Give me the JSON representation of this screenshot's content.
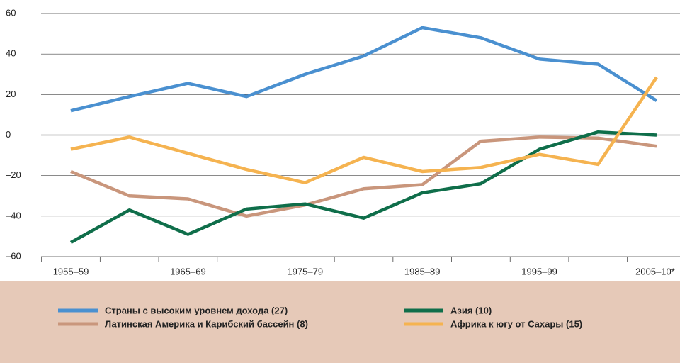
{
  "chart_data": {
    "type": "line",
    "categories": [
      "1955–59",
      null,
      "1965–69",
      null,
      "1975–79",
      null,
      "1985–89",
      null,
      "1995–99",
      null,
      "2005–10*"
    ],
    "series": [
      {
        "name": "Страны с высоким уровнем дохода (27)",
        "color": "#4a90d0",
        "values": [
          12,
          19,
          25.5,
          19,
          30,
          39,
          53,
          48,
          37.5,
          35,
          17
        ]
      },
      {
        "name": "Латинская Америка и Карибский бассейн (8)",
        "color": "#c9967c",
        "values": [
          -18,
          -30,
          -31.5,
          -40,
          -34.5,
          -26.5,
          -24.5,
          -3,
          -1,
          -1.5,
          -5.5
        ]
      },
      {
        "name": "Азия (10)",
        "color": "#0f6e4a",
        "values": [
          -53,
          -37,
          -49,
          -36.5,
          -34,
          -41,
          -28.5,
          -24,
          -7,
          1.5,
          0
        ]
      },
      {
        "name": "Африка к югу от Сахары (15)",
        "color": "#f5b350",
        "values": [
          -7,
          -1,
          -9,
          -17,
          -23.5,
          -11,
          -18,
          -16,
          -9.5,
          -14.5,
          28.5
        ]
      }
    ],
    "ylim": [
      -60,
      60
    ],
    "yticks": [
      {
        "value": -60,
        "label": "–60"
      },
      {
        "value": -40,
        "label": "–40"
      },
      {
        "value": -20,
        "label": "–20"
      },
      0,
      20,
      40,
      60
    ],
    "grid": true
  }
}
